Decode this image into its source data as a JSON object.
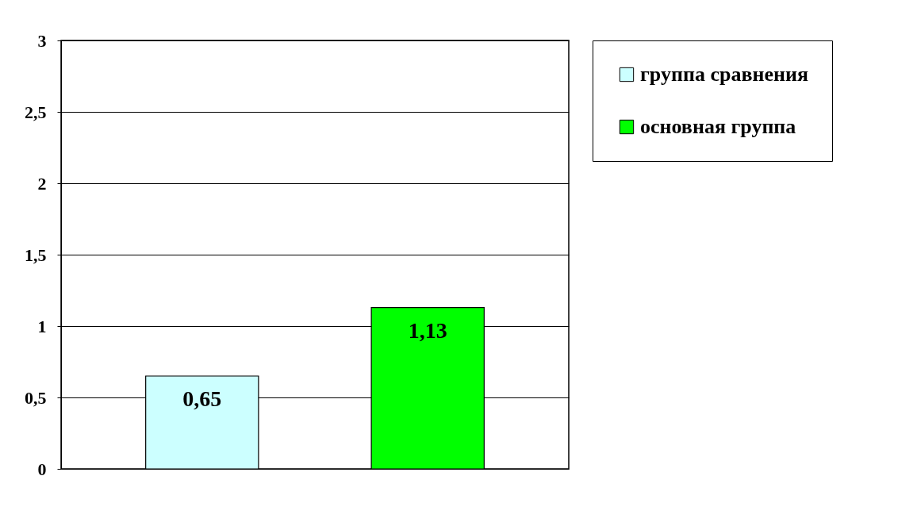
{
  "chart_data": {
    "type": "bar",
    "categories": [
      null
    ],
    "series": [
      {
        "name": "группа сравнения",
        "color": "#ccffff",
        "values": [
          0.65
        ],
        "value_labels": [
          "0,65"
        ]
      },
      {
        "name": "основная группа",
        "color": "#00ff00",
        "values": [
          1.13
        ],
        "value_labels": [
          "1,13"
        ]
      }
    ],
    "ylim": [
      0,
      3
    ],
    "yticks": [
      0,
      {
        "value": 0.5,
        "label": "0,5"
      },
      1,
      {
        "value": 1.5,
        "label": "1,5"
      },
      2,
      {
        "value": 2.5,
        "label": "2,5"
      },
      3
    ],
    "grid": "y",
    "legend": "right"
  }
}
